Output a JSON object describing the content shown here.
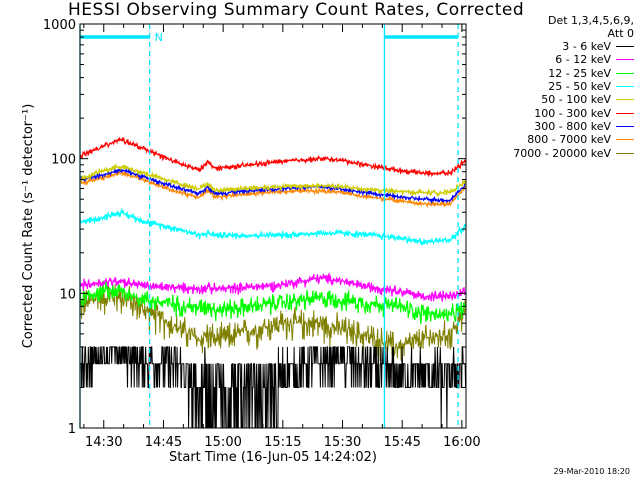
{
  "chart_data": {
    "type": "line",
    "title": "HESSI Observing Summary Count Rates, Corrected",
    "xlabel": "Start Time (16-Jun-05 14:24:02)",
    "ylabel": "Corrected Count Rate (s⁻¹ detector⁻¹)",
    "yscale": "log",
    "ylim": [
      1,
      1000
    ],
    "xlim_minutes_after_start": [
      0,
      97
    ],
    "x_tick_labels": [
      "14:30",
      "14:45",
      "15:00",
      "15:15",
      "15:30",
      "15:45",
      "16:00"
    ],
    "x_tick_minutes_after_start": [
      5.97,
      20.97,
      35.97,
      50.97,
      65.97,
      80.97,
      95.97
    ],
    "y_tick_labels": [
      "1",
      "10",
      "100",
      "1000"
    ],
    "y_ticks": [
      1,
      10,
      100,
      1000
    ],
    "x_minutes_after_start": [
      0,
      5,
      10,
      12,
      18,
      25,
      30,
      32,
      34,
      40,
      50,
      60,
      65,
      70,
      80,
      86,
      93,
      97
    ],
    "series": [
      {
        "name": "3 - 6 keV",
        "color": "#000000",
        "values": [
          2.5,
          3.2,
          3.2,
          3.0,
          2.8,
          2.5,
          1.8,
          2.5,
          2.0,
          1.8,
          2.2,
          2.8,
          3.0,
          2.5,
          2.2,
          2.2,
          2.0,
          2.6
        ]
      },
      {
        "name": "6 - 12 keV",
        "color": "#ff00ff",
        "values": [
          11.5,
          12.0,
          12.5,
          12.0,
          11.2,
          11.0,
          10.8,
          11.0,
          10.8,
          11.0,
          11.5,
          13.0,
          12.5,
          11.5,
          10.5,
          9.5,
          9.5,
          10.0
        ]
      },
      {
        "name": "12 - 25 keV",
        "color": "#00ff00",
        "values": [
          9.0,
          10.5,
          10.5,
          9.8,
          8.8,
          8.2,
          7.8,
          8.2,
          7.6,
          7.8,
          8.5,
          9.2,
          9.0,
          8.6,
          8.0,
          7.2,
          6.8,
          8.0
        ]
      },
      {
        "name": "25 - 50 keV",
        "color": "#00ffff",
        "values": [
          34,
          36,
          40,
          38,
          33,
          30,
          27,
          28,
          27,
          27,
          27,
          28,
          28,
          27.5,
          26,
          24,
          25,
          32
        ]
      },
      {
        "name": "50 - 100 keV",
        "color": "#cccc00",
        "values": [
          70,
          80,
          88,
          85,
          75,
          65,
          60,
          65,
          58,
          60,
          62,
          63,
          62,
          60,
          57,
          56,
          56,
          68
        ]
      },
      {
        "name": "100 - 300 keV",
        "color": "#ff0000",
        "values": [
          105,
          120,
          140,
          132,
          112,
          92,
          82,
          95,
          85,
          88,
          95,
          100,
          98,
          92,
          82,
          78,
          78,
          98
        ]
      },
      {
        "name": "300 - 800 keV",
        "color": "#0000ff",
        "values": [
          70,
          75,
          82,
          80,
          70,
          60,
          55,
          62,
          55,
          57,
          60,
          62,
          60,
          57,
          52,
          50,
          49,
          65
        ]
      },
      {
        "name": "800 - 7000 keV",
        "color": "#ff8800",
        "values": [
          65,
          72,
          78,
          76,
          66,
          56,
          52,
          58,
          52,
          54,
          57,
          58,
          57,
          53,
          49,
          46,
          46,
          62
        ]
      },
      {
        "name": "7000 - 20000 keV",
        "color": "#808000",
        "values": [
          8.0,
          9.5,
          9.5,
          9.0,
          7.0,
          5.5,
          4.5,
          5.0,
          4.5,
          5.0,
          6.0,
          6.0,
          5.5,
          5.0,
          4.0,
          4.5,
          5.0,
          7.5
        ]
      }
    ],
    "night_bars": [
      {
        "label": "",
        "x_start": 0,
        "x_end": 17.5,
        "y": 800
      },
      {
        "label": "",
        "x_start": 76.5,
        "x_end": 95,
        "y": 800
      }
    ],
    "saa_marker": "N",
    "vertical_lines_solid_cyan_minutes": [
      0,
      76.5
    ],
    "vertical_lines_dashed_cyan_minutes": [
      17.5,
      95
    ],
    "legend_header": [
      "Det 1,3,4,5,6,9,",
      "Att 0"
    ],
    "legend_position": "right",
    "grid": false,
    "footer_date": "29-Mar-2010 18:20"
  }
}
